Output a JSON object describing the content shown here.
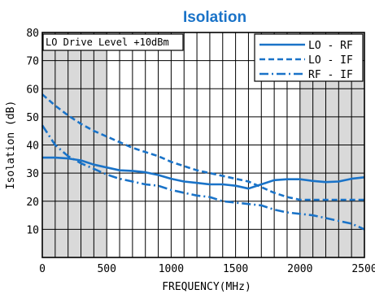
{
  "colors": {
    "title": "#1a73c8",
    "series": "#1a73c8",
    "shade": "#d9d9d9",
    "grid": "#000000"
  },
  "chart_data": {
    "type": "line",
    "title": "Isolation",
    "xlabel": "FREQUENCY(MHz)",
    "ylabel": "Isolation (dB)",
    "annotation": "LO Drive Level +10dBm",
    "xlim": [
      0,
      2500
    ],
    "ylim": [
      0,
      80
    ],
    "x_ticks": [
      0,
      500,
      1000,
      1500,
      2000,
      2500
    ],
    "y_ticks": [
      10,
      20,
      30,
      40,
      50,
      60,
      70,
      80
    ],
    "x_minor_step": 100,
    "grid": true,
    "shaded_bands": [
      [
        0,
        500
      ],
      [
        2000,
        2500
      ]
    ],
    "legend_position": "top-right",
    "series": [
      {
        "name": "LO - RF",
        "style": "solid",
        "x": [
          0,
          100,
          200,
          300,
          400,
          500,
          600,
          700,
          800,
          900,
          1000,
          1100,
          1200,
          1300,
          1400,
          1500,
          1600,
          1700,
          1800,
          1900,
          2000,
          2100,
          2200,
          2300,
          2400,
          2500
        ],
        "y": [
          35.5,
          35.5,
          35.2,
          34.5,
          33,
          32,
          31,
          30.8,
          30.3,
          29.3,
          28,
          27,
          26.5,
          26,
          26,
          25.5,
          24.5,
          26,
          27.5,
          27.8,
          27.8,
          27.2,
          26.8,
          27,
          28,
          28.5
        ]
      },
      {
        "name": "LO - IF",
        "style": "dashed",
        "x": [
          0,
          100,
          200,
          300,
          400,
          500,
          600,
          700,
          800,
          900,
          1000,
          1100,
          1200,
          1300,
          1400,
          1500,
          1600,
          1700,
          1800,
          1900,
          2000,
          2100,
          2200,
          2300,
          2400,
          2500
        ],
        "y": [
          58,
          54,
          50.5,
          47.5,
          45,
          43,
          41,
          39,
          37.5,
          36,
          34,
          32.5,
          31,
          30,
          29,
          28,
          27,
          25,
          23,
          21.5,
          20.5,
          20.5,
          20.5,
          20.5,
          20.5,
          20.5
        ]
      },
      {
        "name": "RF - IF",
        "style": "dashdot",
        "x": [
          0,
          100,
          200,
          300,
          400,
          500,
          600,
          700,
          800,
          900,
          1000,
          1100,
          1200,
          1300,
          1400,
          1500,
          1600,
          1700,
          1800,
          1900,
          2000,
          2100,
          2200,
          2300,
          2400,
          2500
        ],
        "y": [
          47,
          40,
          36,
          33.5,
          31.5,
          29.5,
          28,
          27,
          26,
          25.5,
          24,
          23,
          22,
          21.5,
          20,
          19.5,
          19,
          18.5,
          17,
          16,
          15.5,
          15,
          14,
          13,
          12,
          10
        ]
      }
    ]
  }
}
